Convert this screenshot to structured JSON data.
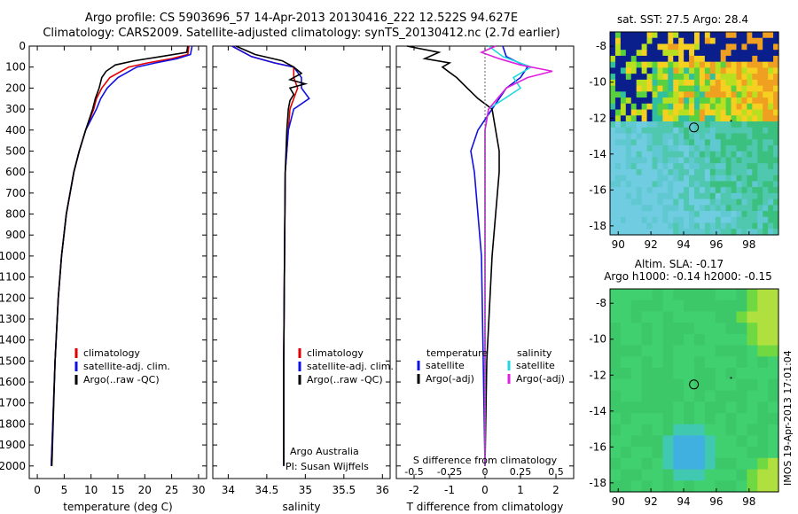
{
  "header": {
    "line1": "Argo profile: CS 5903696_57 14-Apr-2013 20130416_222 12.522S 94.627E",
    "line2": "Climatology: CARS2009. Satellite-adjusted climatology: synTS_20130412.nc (2.7d earlier)"
  },
  "side_stamp": "IMOS 19-Apr-2013 17:01:04",
  "colors": {
    "climatology": "#e00000",
    "satellite": "#1010e0",
    "argo": "#000000",
    "salinity_sat": "#22d8e0",
    "salinity_argo": "#e020e0"
  },
  "chart_data": [
    {
      "type": "line",
      "name": "temperature-panel",
      "xlabel": "temperature (deg C)",
      "ylabel": "",
      "xlim": [
        -1.5,
        31.5
      ],
      "ylim": [
        2060,
        0
      ],
      "xticks": [
        0,
        5,
        10,
        15,
        20,
        25,
        30
      ],
      "yticks": [
        0,
        100,
        200,
        300,
        400,
        500,
        600,
        700,
        800,
        900,
        1000,
        1100,
        1200,
        1300,
        1400,
        1500,
        1600,
        1700,
        1800,
        1900,
        2000
      ],
      "legend": [
        "climatology",
        "satellite-adj. clim.",
        "Argo(..raw -QC)"
      ],
      "series": [
        {
          "name": "climatology",
          "depth": [
            0,
            40,
            60,
            80,
            100,
            150,
            200,
            250,
            300,
            400,
            500,
            600,
            800,
            1000,
            1200,
            1500,
            2000
          ],
          "values": [
            28.2,
            28,
            25,
            20.5,
            17,
            13.5,
            12,
            11,
            10.5,
            9,
            7.8,
            6.8,
            5.4,
            4.5,
            3.9,
            3.3,
            2.6
          ]
        },
        {
          "name": "satellite",
          "depth": [
            0,
            40,
            60,
            80,
            100,
            150,
            200,
            250,
            300,
            400,
            500,
            600,
            800,
            1000,
            1200,
            1500,
            2000
          ],
          "values": [
            28.8,
            28.5,
            26,
            22,
            18.5,
            15,
            13,
            11.8,
            11,
            9,
            7.8,
            6.8,
            5.4,
            4.5,
            3.9,
            3.3,
            2.6
          ]
        },
        {
          "name": "argo",
          "depth": [
            0,
            30,
            50,
            70,
            90,
            120,
            150,
            200,
            250,
            300,
            400,
            500,
            600,
            800,
            1000,
            1200,
            1500,
            2000
          ],
          "values": [
            28,
            27.8,
            23,
            18,
            14.5,
            12.8,
            12,
            11.5,
            10.8,
            10.3,
            9,
            7.8,
            6.8,
            5.4,
            4.5,
            3.9,
            3.3,
            2.7
          ]
        }
      ]
    },
    {
      "type": "line",
      "name": "salinity-panel",
      "xlabel": "salinity",
      "xlim": [
        33.8,
        36.1
      ],
      "ylim": [
        2060,
        0
      ],
      "xticks": [
        34,
        34.5,
        35,
        35.5,
        36
      ],
      "legend": [
        "climatology",
        "satellite-adj. clim.",
        "Argo(..raw -QC)"
      ],
      "annotation": [
        "Argo Australia",
        "PI: Susan Wijffels"
      ],
      "series": [
        {
          "name": "climatology",
          "depth": [
            0,
            50,
            80,
            100,
            150,
            200,
            250,
            300,
            400,
            600,
            1000,
            1500,
            2000
          ],
          "values": [
            34.05,
            34.3,
            34.6,
            34.85,
            34.85,
            34.9,
            34.85,
            34.8,
            34.78,
            34.74,
            34.73,
            34.72,
            34.72
          ]
        },
        {
          "name": "satellite",
          "depth": [
            0,
            50,
            80,
            100,
            150,
            200,
            250,
            300,
            400,
            600,
            1000,
            1500,
            2000
          ],
          "values": [
            34.05,
            34.3,
            34.6,
            34.85,
            34.95,
            34.95,
            35.05,
            34.85,
            34.78,
            34.74,
            34.73,
            34.72,
            34.72
          ]
        },
        {
          "name": "argo",
          "depth": [
            0,
            40,
            70,
            100,
            130,
            160,
            180,
            200,
            230,
            260,
            300,
            400,
            600,
            1000,
            1500,
            2000
          ],
          "values": [
            34.1,
            34.35,
            34.7,
            34.85,
            34.95,
            34.8,
            35.0,
            34.8,
            34.85,
            34.8,
            34.78,
            34.76,
            34.74,
            34.73,
            34.72,
            34.72
          ]
        }
      ]
    },
    {
      "type": "line",
      "name": "difference-panel",
      "xlabel": "T difference from climatology",
      "top_axis_label": "S difference from climatology",
      "xlim": [
        -2.5,
        2.5
      ],
      "ylim": [
        2060,
        0
      ],
      "xticks": [
        -2,
        -1,
        0,
        1,
        2
      ],
      "top_ticks": [
        "-0.5",
        "-0.25",
        "0",
        "0.25",
        "0.5"
      ],
      "legend_temperature": {
        "title": "temperature",
        "items": [
          "satellite",
          "Argo(-adj)"
        ]
      },
      "legend_salinity": {
        "title": "salinity",
        "items": [
          "satellite",
          "Argo(-adj)"
        ]
      },
      "series": [
        {
          "name": "temperature satellite",
          "depth": [
            0,
            50,
            100,
            150,
            200,
            300,
            400,
            500,
            600,
            800,
            1000,
            1500,
            2000
          ],
          "values": [
            0.5,
            0.6,
            1.2,
            1.0,
            0.6,
            0.2,
            -0.2,
            -0.4,
            -0.3,
            -0.2,
            -0.1,
            -0.05,
            0
          ]
        },
        {
          "name": "temperature argo",
          "depth": [
            0,
            30,
            60,
            80,
            100,
            150,
            200,
            250,
            300,
            400,
            500,
            600,
            800,
            1000,
            1500,
            2000
          ],
          "values": [
            -2.2,
            -1.3,
            -1.7,
            -1.0,
            -1.2,
            -0.8,
            -0.5,
            -0.2,
            0.2,
            0.3,
            0.4,
            0.4,
            0.3,
            0.2,
            0.05,
            0
          ]
        },
        {
          "name": "salinity satellite",
          "depth": [
            0,
            50,
            100,
            150,
            200,
            300,
            400,
            600,
            1000,
            1500,
            2000
          ],
          "values": [
            0.1,
            0.5,
            1.3,
            0.8,
            1.0,
            0.1,
            0,
            0,
            0,
            0,
            0
          ]
        },
        {
          "name": "salinity argo",
          "depth": [
            0,
            30,
            60,
            90,
            120,
            150,
            200,
            300,
            400,
            600,
            1000,
            2000
          ],
          "values": [
            0.3,
            -0.1,
            0.4,
            1.0,
            1.9,
            1.2,
            0.6,
            0.1,
            0,
            0,
            0,
            0
          ]
        }
      ]
    },
    {
      "type": "heatmap",
      "name": "sst-map",
      "title": "sat. SST: 27.5  Argo: 28.4",
      "xticks": [
        90,
        92,
        94,
        96,
        98
      ],
      "yticks": [
        -8,
        -10,
        -12,
        -14,
        -16,
        -18
      ],
      "xlim": [
        89.5,
        99.8
      ],
      "ylim": [
        -18.5,
        -7.2
      ],
      "argo_position": [
        94.63,
        -12.52
      ]
    },
    {
      "type": "heatmap",
      "name": "sla-map",
      "title": [
        "Altim. SLA: -0.17",
        "Argo h1000: -0.14 h2000: -0.15"
      ],
      "xticks": [
        90,
        92,
        94,
        96,
        98
      ],
      "yticks": [
        -8,
        -10,
        -12,
        -14,
        -16,
        -18
      ],
      "xlim": [
        89.5,
        99.8
      ],
      "ylim": [
        -18.5,
        -7.2
      ],
      "argo_position": [
        94.63,
        -12.52
      ]
    }
  ]
}
